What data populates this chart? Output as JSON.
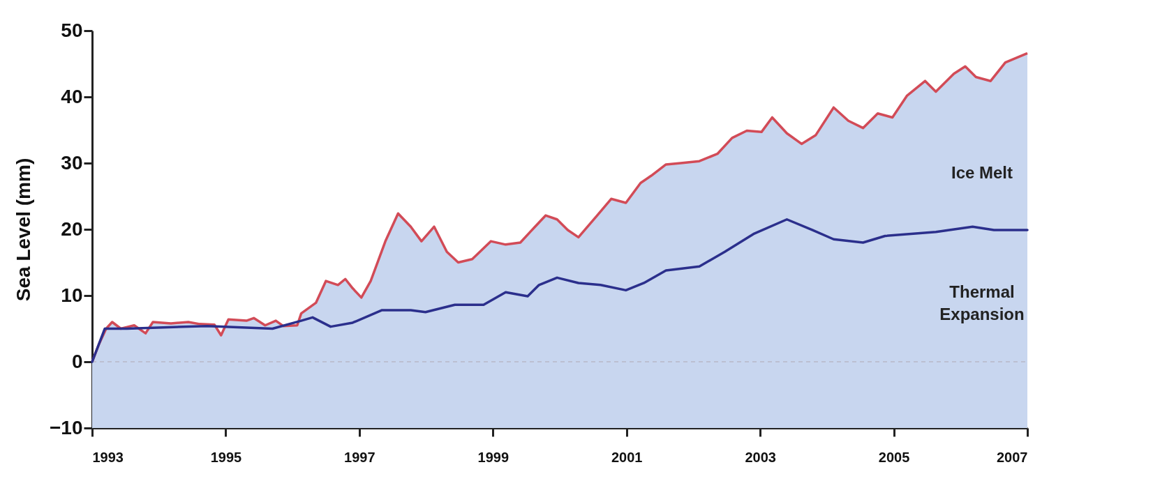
{
  "chart_data": {
    "type": "line",
    "ylabel": "Sea Level (mm)",
    "xlim": [
      1993,
      2007
    ],
    "xticks": [
      1993,
      1995,
      1997,
      1999,
      2001,
      2003,
      2005,
      2007
    ],
    "ylim": [
      -10,
      50
    ],
    "yticks": [
      -10,
      0,
      10,
      20,
      30,
      40,
      50
    ],
    "grid": false,
    "bands": [
      {
        "axis": "y",
        "from": -10,
        "to": 0,
        "color": "#c8d6ef"
      }
    ],
    "ref_lines": [
      {
        "axis": "y",
        "value": 0,
        "color": "#b8b8c8",
        "line_style": "dashed"
      }
    ],
    "annotations": [
      "Ice Melt",
      "Thermal\nExpansion"
    ],
    "series": [
      {
        "type": "area",
        "color": "#d24b57",
        "x": [
          1993.0,
          1993.1,
          1993.21,
          1993.3,
          1993.43,
          1993.63,
          1993.8,
          1993.91,
          1994.18,
          1994.44,
          1994.61,
          1994.83,
          1994.93,
          1995.04,
          1995.31,
          1995.42,
          1995.59,
          1995.75,
          1995.86,
          1996.07,
          1996.13,
          1996.35,
          1996.5,
          1996.68,
          1996.79,
          1996.9,
          1997.03,
          1997.17,
          1997.39,
          1997.58,
          1997.77,
          1997.93,
          1998.12,
          1998.31,
          1998.48,
          1998.69,
          1998.97,
          1999.19,
          1999.41,
          1999.63,
          1999.79,
          1999.96,
          2000.12,
          2000.28,
          2000.56,
          2000.77,
          2000.99,
          2001.21,
          2001.37,
          2001.59,
          2001.81,
          2002.09,
          2002.36,
          2002.58,
          2002.8,
          2003.02,
          2003.18,
          2003.4,
          2003.62,
          2003.83,
          2004.1,
          2004.32,
          2004.54,
          2004.76,
          2004.98,
          2005.2,
          2005.47,
          2005.63,
          2005.9,
          2006.07,
          2006.23,
          2006.45,
          2006.67,
          2007.0
        ],
        "values": [
          0,
          2.6,
          5,
          6,
          5,
          5.5,
          4.3,
          6,
          5.8,
          6,
          5.7,
          5.6,
          4,
          6.4,
          6.2,
          6.6,
          5.5,
          6.2,
          5.4,
          5.5,
          7.3,
          8.9,
          12.2,
          11.6,
          12.5,
          11.1,
          9.7,
          12.2,
          18.2,
          22.4,
          20.4,
          18.2,
          20.4,
          16.6,
          15,
          15.5,
          18.2,
          17.7,
          18,
          20.4,
          22.1,
          21.5,
          19.9,
          18.8,
          22.1,
          24.6,
          24,
          27,
          28.1,
          29.8,
          30,
          30.3,
          31.4,
          33.8,
          34.9,
          34.7,
          36.9,
          34.5,
          32.9,
          34.2,
          38.4,
          36.4,
          35.3,
          37.5,
          36.9,
          40.2,
          42.4,
          40.8,
          43.5,
          44.6,
          43,
          42.4,
          45.2,
          46.6
        ]
      },
      {
        "type": "line",
        "color": "#2b2f8c",
        "x": [
          1993.0,
          1993.19,
          1993.52,
          1994.72,
          1995.7,
          1996.13,
          1996.3,
          1996.57,
          1996.9,
          1997.34,
          1997.77,
          1997.99,
          1998.43,
          1998.86,
          1999.19,
          1999.52,
          1999.69,
          1999.96,
          2000.28,
          2000.61,
          2000.99,
          2001.26,
          2001.59,
          2002.09,
          2002.47,
          2002.9,
          2003.4,
          2003.78,
          2004.1,
          2004.54,
          2004.87,
          2005.63,
          2006.18,
          2006.5,
          2007.0
        ],
        "values": [
          0,
          5,
          5,
          5.4,
          5,
          6.2,
          6.7,
          5.3,
          5.9,
          7.8,
          7.8,
          7.5,
          8.6,
          8.6,
          10.5,
          9.9,
          11.6,
          12.7,
          11.9,
          11.6,
          10.8,
          11.9,
          13.8,
          14.4,
          16.6,
          19.3,
          21.5,
          19.9,
          18.5,
          18,
          19,
          19.6,
          20.4,
          19.9,
          19.9
        ]
      }
    ]
  }
}
